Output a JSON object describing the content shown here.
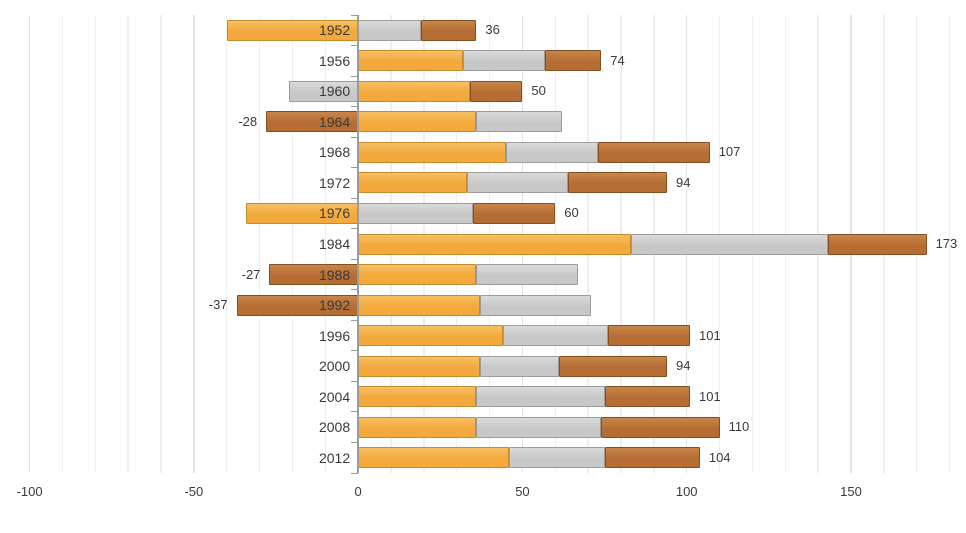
{
  "page": {
    "background": "#FFFFFF"
  },
  "chart_data": {
    "type": "bar",
    "orientation": "horizontal",
    "stacked": true,
    "title": "",
    "legend_position": "none",
    "grid": true,
    "categories": [
      "1952",
      "1956",
      "1960",
      "1964",
      "1968",
      "1972",
      "1976",
      "1984",
      "1988",
      "1992",
      "1996",
      "2000",
      "2004",
      "2008",
      "2012"
    ],
    "series": [
      {
        "name": "gold",
        "color": "#F3A93C",
        "color_top": "#F7C064",
        "border_color": "#C6892B",
        "values": [
          -40,
          32,
          34,
          36,
          45,
          33,
          -34,
          83,
          36,
          37,
          44,
          37,
          36,
          36,
          46
        ]
      },
      {
        "name": "silver",
        "color": "#C8C8C8",
        "color_top": "#DBDBDB",
        "border_color": "#9C9C9C",
        "values": [
          19,
          25,
          -21,
          26,
          28,
          31,
          35,
          60,
          31,
          34,
          32,
          24,
          39,
          38,
          29
        ]
      },
      {
        "name": "bronze",
        "color": "#B66D33",
        "color_top": "#C8854A",
        "border_color": "#85501F",
        "values": [
          17,
          17,
          16,
          -28,
          34,
          30,
          25,
          30,
          -27,
          -37,
          25,
          33,
          26,
          36,
          29
        ]
      }
    ],
    "end_labels": [
      "36",
      "74",
      "50",
      "-28",
      "107",
      "94",
      "60",
      "173",
      "-27",
      "-37",
      "101",
      "94",
      "101",
      "110",
      "104"
    ],
    "x_axis": {
      "tick_labels": [
        "-100",
        "-50",
        "0",
        "50",
        "100",
        "150"
      ],
      "tick_values": [
        -100,
        -50,
        0,
        50,
        100,
        150
      ],
      "min": -109,
      "max": 185,
      "minor_gridline_step": 10,
      "major_gridline_step": 50
    }
  },
  "style": {
    "text_color": "#3A3A3A",
    "axis_color": "#9B9B9B",
    "minor_gridline_color": "#EFEFEF",
    "major_gridline_color": "#E4E4E4"
  }
}
